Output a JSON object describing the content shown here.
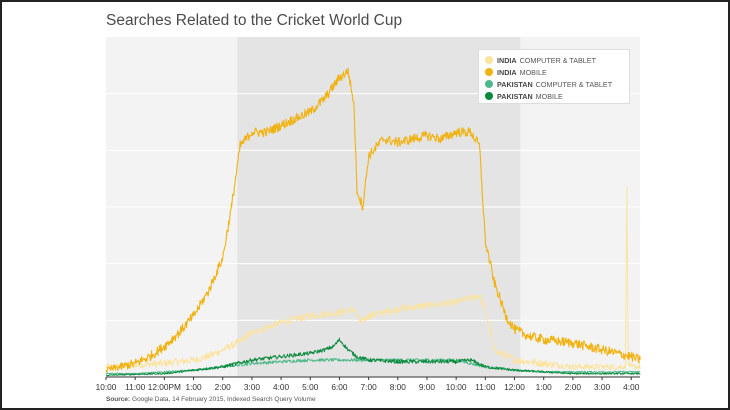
{
  "title": "Searches Related to the Cricket World Cup",
  "source": {
    "label": "Source:",
    "text": "Google Data, 14 February 2015, Indexed Search Query Volume"
  },
  "chart_data": {
    "type": "line",
    "title": "Searches Related to the Cricket World Cup",
    "xlabel": "",
    "ylabel": "",
    "x_tick_labels": [
      "10:00",
      "11:00",
      "12:00PM",
      "1:00",
      "2:00",
      "3:00",
      "4:00",
      "5:00",
      "6:00",
      "7:00",
      "8:00",
      "9:00",
      "10:00",
      "11:00",
      "12:00",
      "1:00",
      "2:00",
      "3:00",
      "4:00"
    ],
    "x_tick_hours": [
      0,
      1,
      2,
      3,
      4,
      5,
      6,
      7,
      8,
      9,
      10,
      11,
      12,
      13,
      14,
      15,
      16,
      17,
      18
    ],
    "xlim": [
      0,
      18.3
    ],
    "ylim": [
      0,
      100
    ],
    "grid": true,
    "legend_position": "top-right",
    "shaded_band_hours": [
      4.5,
      14.2
    ],
    "series": [
      {
        "name": "COMPUTER & TABLET",
        "country": "INDIA",
        "color": "#fbe3a0",
        "x": [
          0,
          1,
          2,
          3,
          3.5,
          4,
          4.5,
          5,
          6,
          7,
          8,
          8.5,
          8.7,
          9,
          10,
          11,
          12,
          12.8,
          13,
          13.3,
          14,
          15,
          16,
          17,
          17.8,
          17.85,
          17.9,
          18,
          18.3
        ],
        "y": [
          3,
          3.5,
          4,
          5,
          6,
          8,
          10,
          13,
          16,
          18,
          19,
          20,
          16,
          18,
          20,
          21,
          22,
          24,
          20,
          8,
          5,
          4,
          3,
          3,
          3,
          56,
          4,
          3,
          3
        ]
      },
      {
        "name": "MOBILE",
        "country": "INDIA",
        "color": "#f1b313",
        "x": [
          0,
          0.5,
          1,
          1.5,
          2,
          2.5,
          3,
          3.5,
          4,
          4.3,
          4.6,
          5,
          5.5,
          6,
          6.5,
          7,
          7.5,
          8,
          8.3,
          8.5,
          8.6,
          8.8,
          9,
          9.5,
          10,
          10.5,
          11,
          11.5,
          12,
          12.5,
          12.8,
          13,
          13.3,
          13.7,
          14,
          14.5,
          15,
          16,
          17,
          18,
          18.3
        ],
        "y": [
          2,
          3,
          4,
          6,
          9,
          13,
          18,
          25,
          35,
          50,
          68,
          72,
          72,
          74,
          76,
          78,
          82,
          88,
          90,
          80,
          55,
          50,
          65,
          70,
          69,
          70,
          71,
          70,
          72,
          72,
          68,
          40,
          28,
          18,
          14,
          12,
          11,
          10,
          8,
          6,
          5
        ]
      },
      {
        "name": "COMPUTER & TABLET",
        "country": "PAKISTAN",
        "color": "#4fb88a",
        "x": [
          0,
          1,
          2,
          3,
          4,
          5,
          6,
          7,
          8,
          9,
          10,
          11,
          12,
          13,
          14,
          15,
          16,
          17,
          18,
          18.3
        ],
        "y": [
          1,
          1,
          1.5,
          2,
          3,
          4,
          4.5,
          5,
          5,
          5,
          5,
          5,
          5,
          3,
          2,
          1.5,
          1.5,
          1.5,
          1.5,
          1.5
        ]
      },
      {
        "name": "MOBILE",
        "country": "PAKISTAN",
        "color": "#0b8a3e",
        "x": [
          0,
          1,
          2,
          3,
          4,
          4.5,
          5,
          6,
          7,
          7.5,
          7.8,
          8,
          8.3,
          8.6,
          9,
          10,
          11,
          12,
          12.5,
          13,
          14,
          15,
          16,
          17,
          18,
          18.3
        ],
        "y": [
          0.5,
          0.8,
          1,
          2,
          3,
          4,
          5,
          6,
          7,
          8,
          9,
          11,
          8,
          6,
          5,
          4.5,
          4.5,
          4.5,
          5,
          3,
          2,
          1.5,
          1,
          1,
          1,
          1
        ]
      }
    ]
  }
}
